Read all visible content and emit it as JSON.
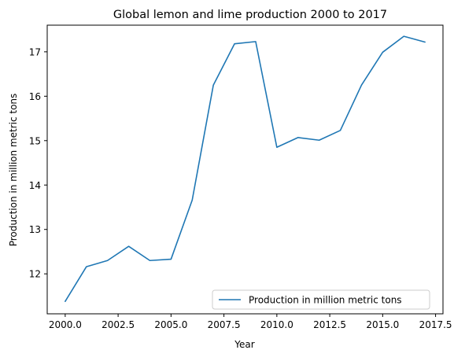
{
  "chart_data": {
    "type": "line",
    "title": "Global lemon and lime production 2000 to 2017",
    "xlabel": "Year",
    "ylabel": "Production in million metric tons",
    "x": [
      2000,
      2001,
      2002,
      2003,
      2004,
      2005,
      2006,
      2007,
      2008,
      2009,
      2010,
      2011,
      2012,
      2013,
      2014,
      2015,
      2016,
      2017
    ],
    "series": [
      {
        "name": "Production in million metric tons",
        "color": "#1f77b4",
        "values": [
          11.38,
          12.16,
          12.3,
          12.62,
          12.3,
          12.33,
          13.66,
          16.25,
          17.18,
          17.23,
          14.85,
          15.07,
          15.01,
          15.23,
          16.25,
          16.99,
          17.35,
          17.22
        ]
      }
    ],
    "xlim": [
      1999.15,
      2017.85
    ],
    "ylim": [
      11.1,
      17.6
    ],
    "xticks": [
      2000.0,
      2002.5,
      2005.0,
      2007.5,
      2010.0,
      2012.5,
      2015.0,
      2017.5
    ],
    "xtick_labels": [
      "2000.0",
      "2002.5",
      "2005.0",
      "2007.5",
      "2010.0",
      "2012.5",
      "2015.0",
      "2017.5"
    ],
    "yticks": [
      12,
      13,
      14,
      15,
      16,
      17
    ],
    "ytick_labels": [
      "12",
      "13",
      "14",
      "15",
      "16",
      "17"
    ],
    "grid": false,
    "legend": "lower-right"
  }
}
